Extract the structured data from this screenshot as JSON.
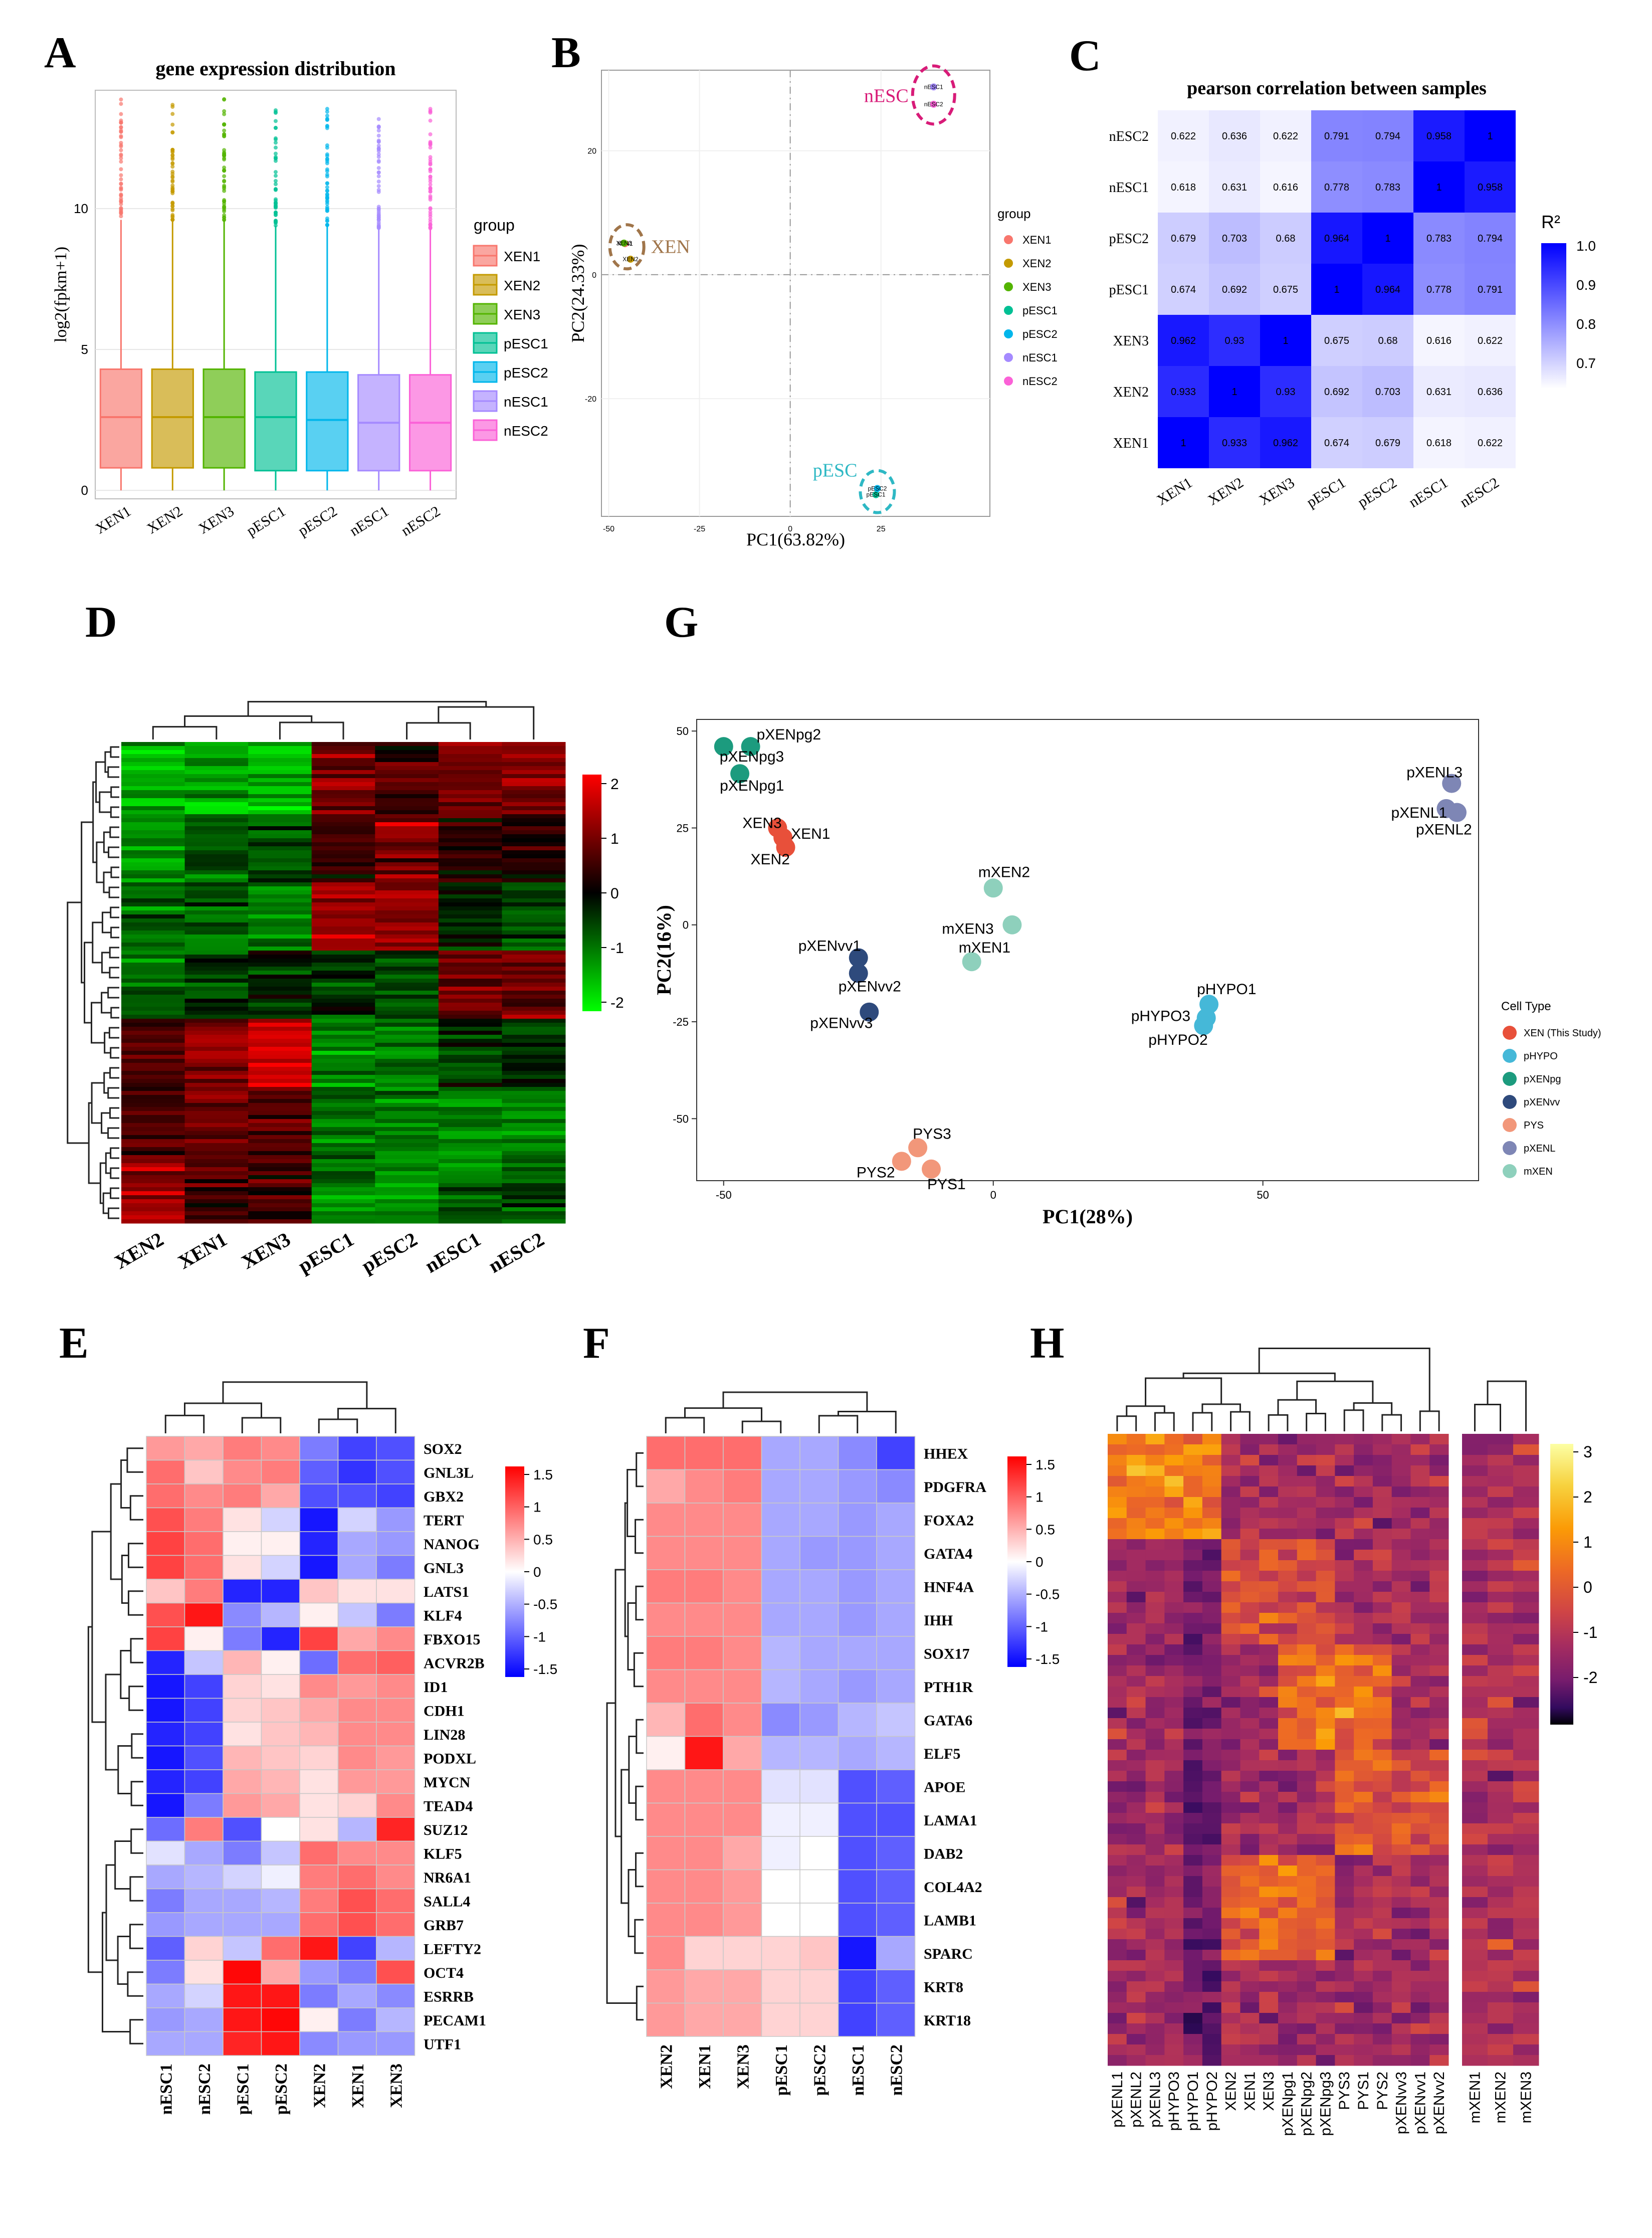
{
  "panel_labels": [
    "A",
    "B",
    "C",
    "D",
    "G",
    "E",
    "F",
    "H"
  ],
  "chart_data": [
    {
      "id": "A",
      "type": "boxplot",
      "title": "gene expression distribution",
      "xlabel": "",
      "ylabel": "log2(fpkm+1)",
      "ylim": [
        -0.3,
        14.2
      ],
      "yticks": [
        0,
        5,
        10
      ],
      "grid": true,
      "legend_title": "group",
      "legend_position": "right",
      "categories": [
        "XEN1",
        "XEN2",
        "XEN3",
        "pESC1",
        "pESC2",
        "nESC1",
        "nESC2"
      ],
      "colors": [
        "#F8766D",
        "#C49A00",
        "#53B400",
        "#00C094",
        "#00B6EB",
        "#A58AFF",
        "#FB61D7"
      ],
      "series": [
        {
          "name": "XEN1",
          "q1": 0.8,
          "median": 2.6,
          "q3": 4.3,
          "whisker_low": 0.0,
          "whisker_high": 9.6,
          "max": 13.9
        },
        {
          "name": "XEN2",
          "q1": 0.8,
          "median": 2.6,
          "q3": 4.3,
          "whisker_low": 0.0,
          "whisker_high": 9.6,
          "max": 14.0
        },
        {
          "name": "XEN3",
          "q1": 0.8,
          "median": 2.6,
          "q3": 4.3,
          "whisker_low": 0.0,
          "whisker_high": 9.6,
          "max": 13.9
        },
        {
          "name": "pESC1",
          "q1": 0.7,
          "median": 2.6,
          "q3": 4.2,
          "whisker_low": 0.0,
          "whisker_high": 9.4,
          "max": 13.6
        },
        {
          "name": "pESC2",
          "q1": 0.7,
          "median": 2.5,
          "q3": 4.2,
          "whisker_low": 0.0,
          "whisker_high": 9.4,
          "max": 13.6
        },
        {
          "name": "nESC1",
          "q1": 0.7,
          "median": 2.4,
          "q3": 4.1,
          "whisker_low": 0.0,
          "whisker_high": 9.3,
          "max": 13.5
        },
        {
          "name": "nESC2",
          "q1": 0.7,
          "median": 2.4,
          "q3": 4.1,
          "whisker_low": 0.0,
          "whisker_high": 9.3,
          "max": 13.6
        }
      ]
    },
    {
      "id": "B",
      "type": "scatter",
      "xlabel": "PC1(63.82%)",
      "ylabel": "PC2(24.33%)",
      "xlim": [
        -52,
        55
      ],
      "ylim": [
        -39,
        33
      ],
      "xticks": [
        -50,
        -25,
        0,
        25
      ],
      "yticks": [
        -20,
        0,
        20
      ],
      "legend_title": "group",
      "legend_position": "right",
      "legend": [
        "XEN1",
        "XEN2",
        "XEN3",
        "pESC1",
        "pESC2",
        "nESC1",
        "nESC2"
      ],
      "colors": [
        "#F8766D",
        "#C49A00",
        "#53B400",
        "#00C094",
        "#00B6EB",
        "#A58AFF",
        "#FB61D7"
      ],
      "points": [
        {
          "label": "XEN1",
          "x": -45.5,
          "y": 5.0
        },
        {
          "label": "XEN2",
          "x": -44.0,
          "y": 2.5
        },
        {
          "label": "XEN3",
          "x": -45.8,
          "y": 5.1
        },
        {
          "label": "pESC1",
          "x": 23.6,
          "y": -35.5
        },
        {
          "label": "pESC2",
          "x": 24.0,
          "y": -34.5
        },
        {
          "label": "nESC1",
          "x": 39.5,
          "y": 30.3
        },
        {
          "label": "nESC2",
          "x": 39.5,
          "y": 27.5
        }
      ],
      "annotations": [
        "XEN",
        "pESC",
        "nESC"
      ],
      "annotation_colors": [
        "#A0754A",
        "#2EB8C4",
        "#D81B78"
      ]
    },
    {
      "id": "C",
      "type": "heatmap",
      "title": "pearson correlation between samples",
      "rows": [
        "nESC2",
        "nESC1",
        "pESC2",
        "pESC1",
        "XEN3",
        "XEN2",
        "XEN1"
      ],
      "cols": [
        "XEN1",
        "XEN2",
        "XEN3",
        "pESC1",
        "pESC2",
        "nESC1",
        "nESC2"
      ],
      "cell_labels": [
        [
          "0.622",
          "0.636",
          "0.622",
          "0.791",
          "0.794",
          "0.958",
          "1"
        ],
        [
          "0.618",
          "0.631",
          "0.616",
          "0.778",
          "0.783",
          "1",
          "0.958"
        ],
        [
          "0.679",
          "0.703",
          "0.68",
          "0.964",
          "1",
          "0.783",
          "0.794"
        ],
        [
          "0.674",
          "0.692",
          "0.675",
          "1",
          "0.964",
          "0.778",
          "0.791"
        ],
        [
          "0.962",
          "0.93",
          "1",
          "0.675",
          "0.68",
          "0.616",
          "0.622"
        ],
        [
          "0.933",
          "1",
          "0.93",
          "0.692",
          "0.703",
          "0.631",
          "0.636"
        ],
        [
          "1",
          "0.933",
          "0.962",
          "0.674",
          "0.679",
          "0.618",
          "0.622"
        ]
      ],
      "legend_title": "R²",
      "legend_ticks": [
        "1.0",
        "0.9",
        "0.8",
        "0.7"
      ],
      "color_range": [
        0.6,
        1.0
      ],
      "color_low": "#FFFFFF",
      "color_high": "#0000FF"
    },
    {
      "id": "D",
      "type": "heatmap",
      "cols": [
        "XEN2",
        "XEN1",
        "XEN3",
        "pESC1",
        "pESC2",
        "nESC1",
        "nESC2"
      ],
      "n_rows": 120,
      "legend_ticks": [
        "2",
        "1",
        "0",
        "-1",
        "-2"
      ],
      "color_range": [
        -2.3,
        2.3
      ],
      "color_low": "#00FF00",
      "color_mid": "#000000",
      "color_high": "#FF0000"
    },
    {
      "id": "G",
      "type": "scatter",
      "xlabel": "PC1(28%)",
      "ylabel": "PC2(16%)",
      "xlim": [
        -55,
        90
      ],
      "ylim": [
        -66,
        53
      ],
      "xticks": [
        -50,
        0,
        50
      ],
      "yticks": [
        50,
        25,
        0,
        -25,
        -50
      ],
      "legend_title": "Cell Type",
      "legend_position": "right",
      "legend": [
        "XEN (This Study)",
        "pHYPO",
        "pXENpg",
        "pXENvv",
        "PYS",
        "pXENL",
        "mXEN"
      ],
      "colors": [
        "#E8503A",
        "#45B8D8",
        "#1C9B7E",
        "#2E4A7C",
        "#F2977A",
        "#7E86B5",
        "#8ED0BC"
      ],
      "points": [
        {
          "label": "pXENpg2",
          "group": "pXENpg",
          "x": -45,
          "y": 46
        },
        {
          "label": "pXENpg3",
          "group": "pXENpg",
          "x": -50,
          "y": 46
        },
        {
          "label": "pXENpg1",
          "group": "pXENpg",
          "x": -47,
          "y": 39
        },
        {
          "label": "XEN3",
          "group": "XEN (This Study)",
          "x": -40,
          "y": 25
        },
        {
          "label": "XEN1",
          "group": "XEN (This Study)",
          "x": -39,
          "y": 22.5
        },
        {
          "label": "XEN2",
          "group": "XEN (This Study)",
          "x": -38.5,
          "y": 20
        },
        {
          "label": "mXEN2",
          "group": "mXEN",
          "x": 0,
          "y": 9.5
        },
        {
          "label": "mXEN3",
          "group": "mXEN",
          "x": 3.5,
          "y": 0
        },
        {
          "label": "mXEN1",
          "group": "mXEN",
          "x": -4,
          "y": -9.5
        },
        {
          "label": "pXENvv1",
          "group": "pXENvv",
          "x": -25,
          "y": -8.5
        },
        {
          "label": "pXENvv2",
          "group": "pXENvv",
          "x": -25,
          "y": -12.5
        },
        {
          "label": "pXENvv3",
          "group": "pXENvv",
          "x": -23,
          "y": -22.5
        },
        {
          "label": "pHYPO1",
          "group": "pHYPO",
          "x": 40,
          "y": -20.5
        },
        {
          "label": "pHYPO3",
          "group": "pHYPO",
          "x": 39.5,
          "y": -24
        },
        {
          "label": "pHYPO2",
          "group": "pHYPO",
          "x": 39,
          "y": -26
        },
        {
          "label": "PYS3",
          "group": "PYS",
          "x": -14,
          "y": -57.5
        },
        {
          "label": "PYS2",
          "group": "PYS",
          "x": -17,
          "y": -61
        },
        {
          "label": "PYS1",
          "group": "PYS",
          "x": -11.5,
          "y": -63
        },
        {
          "label": "pXENL3",
          "group": "pXENL",
          "x": 85,
          "y": 36.5
        },
        {
          "label": "pXENL1",
          "group": "pXENL",
          "x": 84,
          "y": 30
        },
        {
          "label": "pXENL2",
          "group": "pXENL",
          "x": 86,
          "y": 29
        }
      ]
    },
    {
      "id": "E",
      "type": "heatmap",
      "rows": [
        "SOX2",
        "GNL3L",
        "GBX2",
        "TERT",
        "NANOG",
        "GNL3",
        "LATS1",
        "KLF4",
        "FBXO15",
        "ACVR2B",
        "ID1",
        "CDH1",
        "LIN28",
        "PODXL",
        "MYCN",
        "TEAD4",
        "SUZ12",
        "KLF5",
        "NR6A1",
        "SALL4",
        "GRB7",
        "LEFTY2",
        "OCT4",
        "ESRRB",
        "PECAM1",
        "UTF1"
      ],
      "cols": [
        "nESC1",
        "nESC2",
        "pESC1",
        "pESC2",
        "XEN2",
        "XEN1",
        "XEN3"
      ],
      "values": [
        [
          0.7,
          0.6,
          0.9,
          0.8,
          -0.9,
          -1.3,
          -1.2
        ],
        [
          1.0,
          0.4,
          0.8,
          0.9,
          -1.1,
          -1.4,
          -1.2
        ],
        [
          1.0,
          0.8,
          0.9,
          0.6,
          -1.2,
          -1.2,
          -1.3
        ],
        [
          1.2,
          0.9,
          0.2,
          -0.3,
          -1.6,
          -0.3,
          -0.7
        ],
        [
          1.3,
          1.0,
          0.1,
          0.1,
          -1.5,
          -0.6,
          -0.7
        ],
        [
          1.3,
          1.0,
          0.2,
          -0.3,
          -1.6,
          -0.6,
          -0.9
        ],
        [
          0.4,
          0.9,
          -1.5,
          -1.5,
          0.4,
          0.2,
          0.2
        ],
        [
          1.2,
          1.6,
          -0.8,
          -0.5,
          0.1,
          -0.4,
          -0.9
        ],
        [
          1.3,
          0.1,
          -0.9,
          -1.5,
          1.3,
          0.6,
          0.8
        ],
        [
          -1.5,
          -0.4,
          0.5,
          0.1,
          -1.0,
          1.0,
          1.1
        ],
        [
          -1.6,
          -1.3,
          0.3,
          0.2,
          0.8,
          0.7,
          0.8
        ],
        [
          -1.6,
          -1.3,
          0.3,
          0.4,
          0.6,
          0.8,
          0.8
        ],
        [
          -1.5,
          -1.3,
          0.2,
          0.4,
          0.5,
          0.8,
          0.8
        ],
        [
          -1.6,
          -1.2,
          0.5,
          0.4,
          0.3,
          0.8,
          0.7
        ],
        [
          -1.5,
          -1.3,
          0.6,
          0.5,
          0.2,
          0.7,
          0.7
        ],
        [
          -1.6,
          -0.9,
          0.7,
          0.6,
          0.2,
          0.3,
          0.8
        ],
        [
          -1.0,
          0.9,
          -1.2,
          0.0,
          0.2,
          -0.5,
          1.5
        ],
        [
          -0.2,
          -0.6,
          -0.9,
          -0.4,
          1.0,
          0.8,
          0.8
        ],
        [
          -0.6,
          -0.5,
          -0.3,
          -0.1,
          0.9,
          1.0,
          0.8
        ],
        [
          -0.9,
          -0.6,
          -0.6,
          -0.5,
          0.9,
          1.2,
          1.0
        ],
        [
          -0.7,
          -0.6,
          -0.6,
          -0.6,
          1.0,
          1.2,
          1.0
        ],
        [
          -1.1,
          0.3,
          -0.4,
          1.0,
          1.6,
          -1.3,
          -0.5
        ],
        [
          -0.9,
          0.2,
          1.7,
          0.6,
          -0.7,
          -0.9,
          1.2
        ],
        [
          -0.6,
          -0.3,
          1.6,
          1.6,
          -0.9,
          -0.6,
          -0.8
        ],
        [
          -0.7,
          -0.6,
          1.6,
          1.7,
          0.1,
          -0.9,
          -0.5
        ],
        [
          -0.6,
          -0.6,
          1.5,
          1.6,
          -0.8,
          -0.7,
          -0.7
        ]
      ],
      "legend_ticks": [
        "1.5",
        "1",
        "0.5",
        "0",
        "-0.5",
        "-1",
        "-1.5"
      ],
      "color_range": [
        -1.75,
        1.75
      ],
      "color_low": "#0000FF",
      "color_mid": "#FFFFFF",
      "color_high": "#FF0000"
    },
    {
      "id": "F",
      "type": "heatmap",
      "rows": [
        "HHEX",
        "PDGFRA",
        "FOXA2",
        "GATA4",
        "HNF4A",
        "IHH",
        "SOX17",
        "PTH1R",
        "GATA6",
        "ELF5",
        "APOE",
        "LAMA1",
        "DAB2",
        "COL4A2",
        "LAMB1",
        "SPARC",
        "KRT8",
        "KRT18"
      ],
      "cols": [
        "XEN2",
        "XEN1",
        "XEN3",
        "pESC1",
        "pESC2",
        "nESC1",
        "nESC2"
      ],
      "values": [
        [
          1.0,
          1.0,
          1.0,
          -0.6,
          -0.6,
          -0.8,
          -1.3
        ],
        [
          0.6,
          0.8,
          0.9,
          -0.6,
          -0.6,
          -0.7,
          -0.8
        ],
        [
          0.8,
          0.8,
          0.8,
          -0.6,
          -0.6,
          -0.7,
          -0.6
        ],
        [
          0.8,
          0.8,
          0.8,
          -0.6,
          -0.7,
          -0.7,
          -0.6
        ],
        [
          0.9,
          0.9,
          0.8,
          -0.6,
          -0.6,
          -0.7,
          -0.6
        ],
        [
          0.8,
          0.8,
          0.8,
          -0.6,
          -0.6,
          -0.7,
          -0.6
        ],
        [
          0.9,
          0.9,
          0.8,
          -0.5,
          -0.6,
          -0.6,
          -0.6
        ],
        [
          0.8,
          0.8,
          0.8,
          -0.5,
          -0.6,
          -0.7,
          -0.6
        ],
        [
          0.5,
          1.0,
          0.8,
          -0.8,
          -0.7,
          -0.5,
          -0.4
        ],
        [
          0.1,
          1.6,
          0.6,
          -0.5,
          -0.5,
          -0.6,
          -0.5
        ],
        [
          0.8,
          0.8,
          0.8,
          -0.2,
          -0.2,
          -1.2,
          -1.1
        ],
        [
          0.8,
          0.8,
          0.8,
          -0.1,
          -0.1,
          -1.2,
          -1.2
        ],
        [
          0.8,
          0.8,
          0.6,
          -0.1,
          0.0,
          -1.2,
          -1.1
        ],
        [
          0.8,
          0.8,
          0.7,
          0.0,
          0.0,
          -1.2,
          -1.1
        ],
        [
          0.8,
          0.8,
          0.7,
          0.0,
          0.0,
          -1.2,
          -1.1
        ],
        [
          0.8,
          0.3,
          0.3,
          0.3,
          0.4,
          -1.6,
          -0.6
        ],
        [
          0.7,
          0.6,
          0.6,
          0.3,
          0.3,
          -1.3,
          -1.1
        ],
        [
          0.7,
          0.6,
          0.6,
          0.3,
          0.3,
          -1.3,
          -1.1
        ]
      ],
      "legend_ticks": [
        "1.5",
        "1",
        "0.5",
        "0",
        "-0.5",
        "-1",
        "-1.5"
      ],
      "color_range": [
        -1.75,
        1.75
      ],
      "color_low": "#0000FF",
      "color_mid": "#FFFFFF",
      "color_high": "#FF0000"
    },
    {
      "id": "H",
      "type": "heatmap",
      "cols": [
        "pXENL1",
        "pXENL2",
        "pXENL3",
        "pHYPO3",
        "pHYPO1",
        "pHYPO2",
        "XEN2",
        "XEN1",
        "XEN3",
        "pXENpg1",
        "pXENpg2",
        "pXENpg3",
        "PYS3",
        "PYS1",
        "PYS2",
        "pXENvv3",
        "pXENvv1",
        "pXENvv2"
      ],
      "cols_right": [
        "mXEN1",
        "mXEN2",
        "mXEN3"
      ],
      "n_rows": 60,
      "legend_ticks": [
        "3",
        "2",
        "1",
        "0",
        "-1",
        "-2"
      ],
      "color_range": [
        -2.6,
        3.4
      ],
      "colormap": "inferno"
    }
  ]
}
